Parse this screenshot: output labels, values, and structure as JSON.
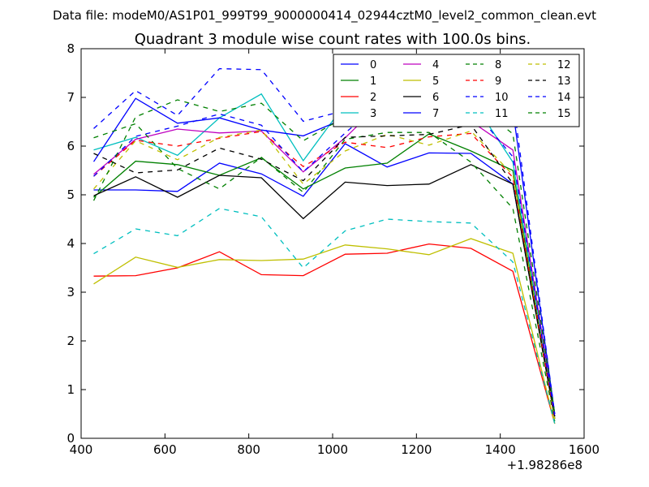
{
  "figure": {
    "suptitle": "Data file: modeM0/AS1P01_999T99_9000000414_02944cztM0_level2_common_clean.evt",
    "offset_label": "+1.98286e8"
  },
  "chart_data": {
    "type": "line",
    "title": "Quadrant 3 module wise count rates with 100.0s bins.",
    "xlabel": "",
    "ylabel": "",
    "xlim": [
      400,
      1600
    ],
    "ylim": [
      0,
      8
    ],
    "x_offset": 198286000,
    "grid": false,
    "legend_position": "top-right",
    "xticks": [
      400,
      600,
      800,
      1000,
      1200,
      1400,
      1600
    ],
    "yticks": [
      0,
      1,
      2,
      3,
      4,
      5,
      6,
      7,
      8
    ],
    "x": [
      430,
      530,
      630,
      730,
      830,
      930,
      1030,
      1130,
      1230,
      1330,
      1430,
      1530
    ],
    "series": [
      {
        "name": "0",
        "color": "#0000ff",
        "dash": "solid",
        "values": [
          5.1,
          5.1,
          5.07,
          5.65,
          5.43,
          4.97,
          6.05,
          5.57,
          5.86,
          5.85,
          5.22,
          0.45
        ]
      },
      {
        "name": "1",
        "color": "#008000",
        "dash": "solid",
        "values": [
          4.95,
          5.69,
          5.62,
          5.4,
          5.76,
          5.12,
          5.55,
          5.65,
          6.25,
          5.9,
          5.5,
          0.4
        ]
      },
      {
        "name": "2",
        "color": "#ff0000",
        "dash": "solid",
        "values": [
          3.33,
          3.34,
          3.5,
          3.83,
          3.36,
          3.34,
          3.78,
          3.8,
          3.99,
          3.9,
          3.43,
          0.3
        ]
      },
      {
        "name": "3",
        "color": "#00bfbf",
        "dash": "solid",
        "values": [
          5.92,
          6.18,
          5.81,
          6.58,
          7.07,
          5.7,
          6.87,
          6.66,
          7.06,
          6.98,
          5.67,
          0.5
        ]
      },
      {
        "name": "4",
        "color": "#bf00bf",
        "dash": "solid",
        "values": [
          5.42,
          6.14,
          6.35,
          6.27,
          6.31,
          5.47,
          6.17,
          7.01,
          6.51,
          6.51,
          5.92,
          0.5
        ]
      },
      {
        "name": "5",
        "color": "#bfbf00",
        "dash": "solid",
        "values": [
          3.17,
          3.72,
          3.51,
          3.67,
          3.65,
          3.68,
          3.97,
          3.89,
          3.77,
          4.1,
          3.8,
          0.3
        ]
      },
      {
        "name": "6",
        "color": "#000000",
        "dash": "solid",
        "values": [
          4.98,
          5.37,
          4.95,
          5.4,
          5.35,
          4.51,
          5.26,
          5.19,
          5.22,
          5.62,
          5.22,
          0.4
        ]
      },
      {
        "name": "7",
        "color": "#0000ff",
        "dash": "solid",
        "values": [
          5.68,
          6.98,
          6.47,
          6.58,
          6.33,
          6.21,
          6.57,
          7.17,
          6.65,
          7.02,
          6.74,
          0.5
        ]
      },
      {
        "name": "8",
        "color": "#008000",
        "dash": "dashed",
        "values": [
          6.17,
          6.46,
          5.54,
          5.12,
          5.77,
          5.05,
          6.14,
          6.28,
          6.28,
          5.67,
          4.72,
          0.35
        ]
      },
      {
        "name": "9",
        "color": "#ff0000",
        "dash": "dashed",
        "values": [
          5.38,
          6.12,
          6.0,
          6.16,
          6.3,
          5.58,
          6.08,
          5.97,
          6.19,
          6.26,
          5.36,
          0.4
        ]
      },
      {
        "name": "10",
        "color": "#0000ff",
        "dash": "dashed",
        "values": [
          5.38,
          6.2,
          6.41,
          6.66,
          6.43,
          5.47,
          6.27,
          7.0,
          7.68,
          6.81,
          5.78,
          0.45
        ]
      },
      {
        "name": "11",
        "color": "#00bfbf",
        "dash": "dashed",
        "values": [
          3.79,
          4.3,
          4.16,
          4.72,
          4.55,
          3.5,
          4.26,
          4.5,
          4.45,
          4.42,
          3.62,
          0.3
        ]
      },
      {
        "name": "12",
        "color": "#bfbf00",
        "dash": "dashed",
        "values": [
          5.12,
          6.11,
          5.72,
          6.18,
          6.33,
          5.22,
          5.9,
          6.24,
          6.02,
          6.31,
          5.41,
          0.4
        ]
      },
      {
        "name": "13",
        "color": "#000000",
        "dash": "dashed",
        "values": [
          5.85,
          5.45,
          5.51,
          5.96,
          5.73,
          5.29,
          6.18,
          6.21,
          6.24,
          6.44,
          5.23,
          0.45
        ]
      },
      {
        "name": "14",
        "color": "#0000ff",
        "dash": "dashed",
        "values": [
          6.36,
          7.14,
          6.63,
          7.59,
          7.57,
          6.51,
          6.73,
          7.38,
          7.18,
          6.96,
          6.98,
          0.5
        ]
      },
      {
        "name": "15",
        "color": "#008000",
        "dash": "dashed",
        "values": [
          4.88,
          6.6,
          6.95,
          6.71,
          6.88,
          6.11,
          6.6,
          7.5,
          7.13,
          6.94,
          6.25,
          0.5
        ]
      }
    ]
  }
}
